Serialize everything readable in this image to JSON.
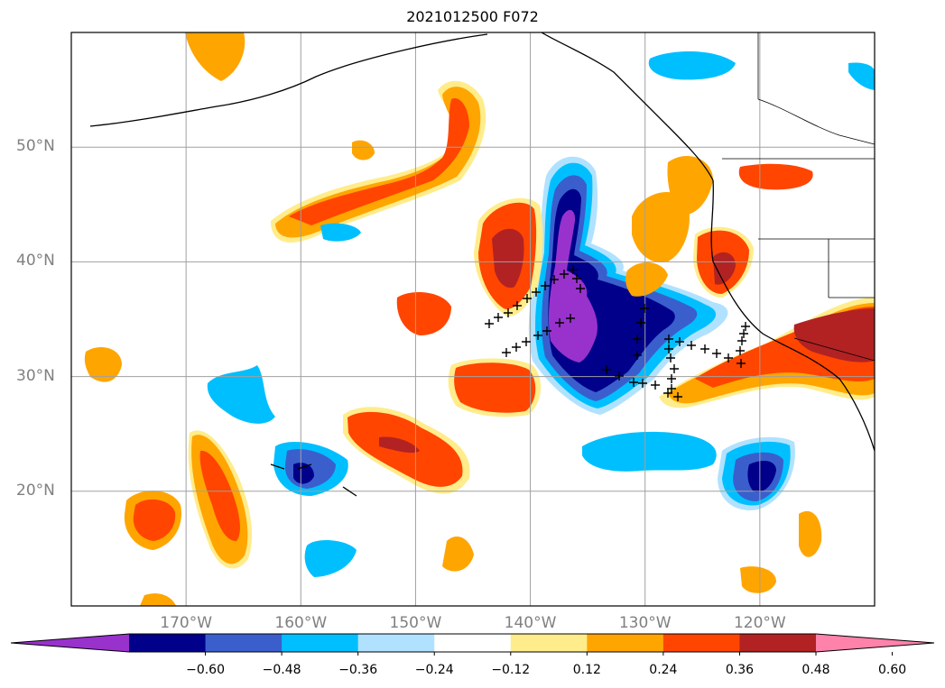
{
  "title": "2021012500 F072",
  "map": {
    "lat_range": [
      10,
      60
    ],
    "lon_range": [
      -180,
      -110
    ],
    "lat_ticks": [
      {
        "value": 20,
        "label": "20°N"
      },
      {
        "value": 30,
        "label": "30°N"
      },
      {
        "value": 40,
        "label": "40°N"
      },
      {
        "value": 50,
        "label": "50°N"
      }
    ],
    "lon_ticks": [
      {
        "value": -170,
        "label": "170°W"
      },
      {
        "value": -160,
        "label": "160°W"
      },
      {
        "value": -150,
        "label": "150°W"
      },
      {
        "value": -140,
        "label": "140°W"
      },
      {
        "value": -130,
        "label": "130°W"
      },
      {
        "value": -120,
        "label": "120°W"
      }
    ],
    "grid": true
  },
  "colorbar": {
    "extend": "both",
    "tick_labels": [
      "−0.60",
      "−0.48",
      "−0.36",
      "−0.24",
      "−0.12",
      "0.12",
      "0.24",
      "0.36",
      "0.48",
      "0.60"
    ],
    "colors": [
      "#9932cc",
      "#00008b",
      "#3a5fcd",
      "#00bfff",
      "#b0e2ff",
      "#ffffff",
      "#ffec8b",
      "#ffa500",
      "#ff4500",
      "#b22222",
      "#ff82ab"
    ]
  }
}
